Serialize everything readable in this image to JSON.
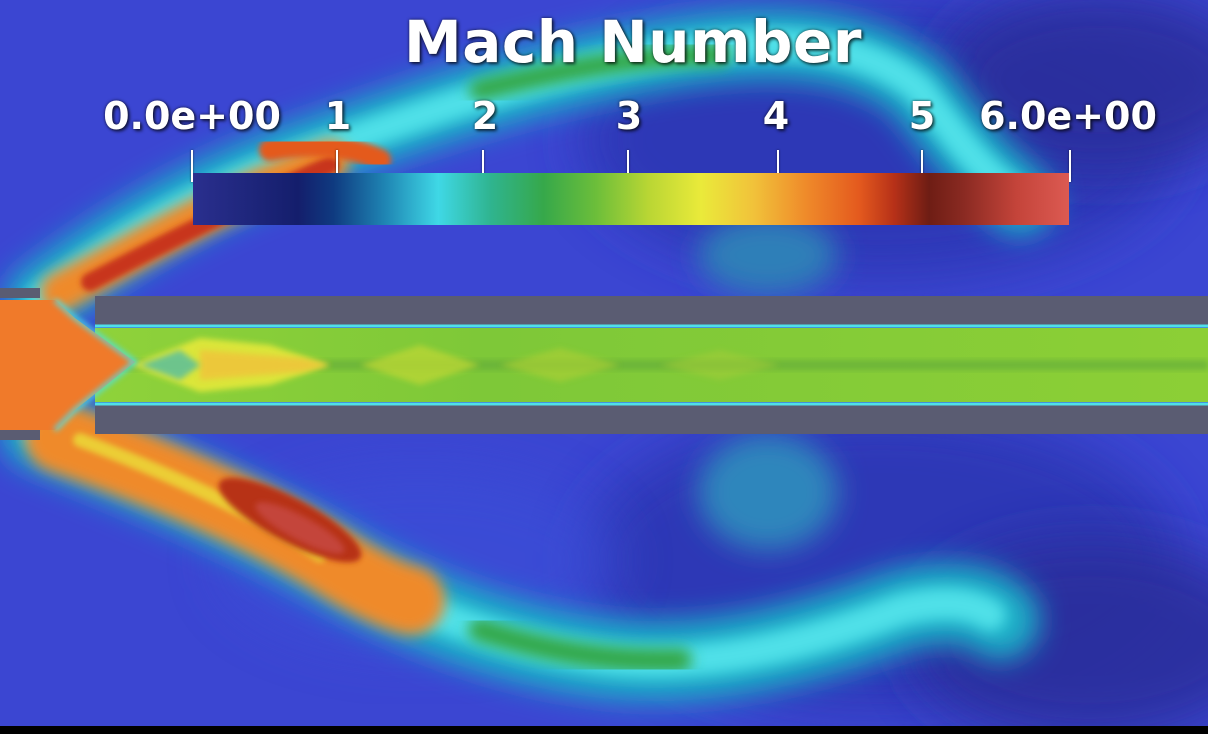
{
  "title": "Mach Number",
  "colorbar": {
    "tick_labels": [
      "0.0e+00",
      "1",
      "2",
      "3",
      "4",
      "5",
      "6.0e+00"
    ],
    "tick_values": [
      0,
      1,
      2,
      3,
      4,
      5,
      6
    ],
    "range": [
      0,
      6
    ],
    "colors": [
      "#2a2f8e",
      "#141e6c",
      "#3fd8e6",
      "#36a84a",
      "#eaea3a",
      "#ef8a2a",
      "#6e1d14",
      "#dc5a52"
    ]
  },
  "palette": {
    "background": "#3b46d2",
    "wall": "#5a5c72",
    "jet_core": "#f07a2a",
    "supersonic": "#8fd23a",
    "shear_layer": "#4fe0e8"
  }
}
